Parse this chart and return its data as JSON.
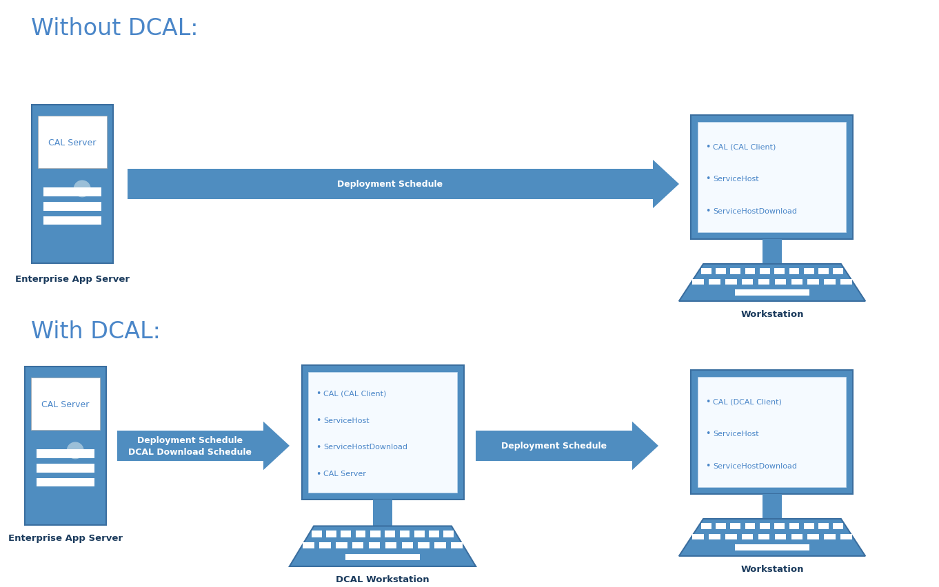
{
  "bg_color": "#ffffff",
  "title_color": "#4A86C8",
  "server_fill": "#4F8DC0",
  "server_border": "#3A6E9F",
  "server_label_bg": "#ffffff",
  "server_label_text": "#4A86C8",
  "monitor_fill": "#4F8DC0",
  "monitor_border": "#3A6E9F",
  "screen_bg": "#f0f7ff",
  "screen_text": "#4A86C8",
  "keyboard_fill": "#4F8DC0",
  "keyboard_key": "#ffffff",
  "arrow_fill": "#4F8DC0",
  "arrow_text": "#ffffff",
  "section_title_color": "#4A86C8",
  "label_color": "#1a3a5c",
  "circle_color": "#9bbfd8",
  "drive_color": "#ffffff",
  "section1_title": "Without DCAL:",
  "section2_title": "With DCAL:",
  "server_label_top": "CAL Server",
  "server_label_bottom": "Enterprise App Server",
  "ws_label1": "Workstation",
  "ws_label2": "Workstation",
  "dcal_ws_label": "DCAL Workstation",
  "arrow1_lines": [
    "Deployment Schedule"
  ],
  "arrow2_lines": [
    "Deployment Schedule",
    "DCAL Download Schedule"
  ],
  "arrow3_lines": [
    "Deployment Schedule"
  ],
  "ws1_items": [
    "CAL (CAL Client)",
    "ServiceHost",
    "ServiceHostDownload"
  ],
  "ws2_items": [
    "CAL (CAL Client)",
    "ServiceHost",
    "ServiceHostDownload",
    "CAL Server"
  ],
  "ws3_items": [
    "CAL (DCAL Client)",
    "ServiceHost",
    "ServiceHostDownload"
  ]
}
